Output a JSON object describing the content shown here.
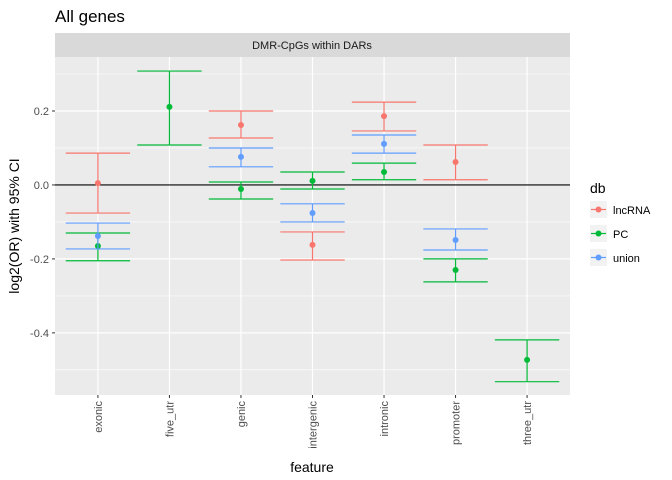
{
  "chart_data": {
    "type": "errorbar",
    "title": "All genes",
    "facet": "DMR-CpGs within DARs",
    "x_label": "feature",
    "y_label": "log2(OR) with 95% CI",
    "legend_title": "db",
    "legend": "right",
    "categories": [
      "exonic",
      "five_utr",
      "genic",
      "intergenic",
      "intronic",
      "promoter",
      "three_utr"
    ],
    "series": [
      {
        "name": "lncRNA",
        "color": "#F8766D",
        "values": [
          0.005,
          null,
          0.162,
          -0.162,
          0.186,
          0.062,
          null
        ],
        "lower": [
          -0.076,
          null,
          0.127,
          -0.203,
          0.146,
          0.014,
          null
        ],
        "upper": [
          0.086,
          null,
          0.2,
          -0.127,
          0.224,
          0.108,
          null
        ]
      },
      {
        "name": "PC",
        "color": "#00BA38",
        "values": [
          -0.165,
          0.211,
          -0.011,
          0.011,
          0.035,
          -0.23,
          -0.473
        ],
        "lower": [
          -0.205,
          0.108,
          -0.038,
          -0.011,
          0.014,
          -0.262,
          -0.532
        ],
        "upper": [
          -0.13,
          0.308,
          0.008,
          0.035,
          0.059,
          -0.2,
          -0.419
        ]
      },
      {
        "name": "union",
        "color": "#619CFF",
        "values": [
          -0.138,
          null,
          0.076,
          -0.076,
          0.111,
          -0.149,
          null
        ],
        "lower": [
          -0.173,
          null,
          0.049,
          -0.1,
          0.086,
          -0.176,
          null
        ],
        "upper": [
          -0.103,
          null,
          0.1,
          -0.051,
          0.135,
          -0.119,
          null
        ]
      }
    ],
    "ylim": [
      -0.568,
      0.346
    ],
    "yticks": [
      -0.4,
      -0.2,
      {
        "value": 0,
        "label": "0.0"
      },
      0.2
    ],
    "minor_yticks": [
      -0.5,
      -0.3,
      -0.1,
      0.1,
      0.3
    ],
    "hline": 0,
    "grid": true
  }
}
